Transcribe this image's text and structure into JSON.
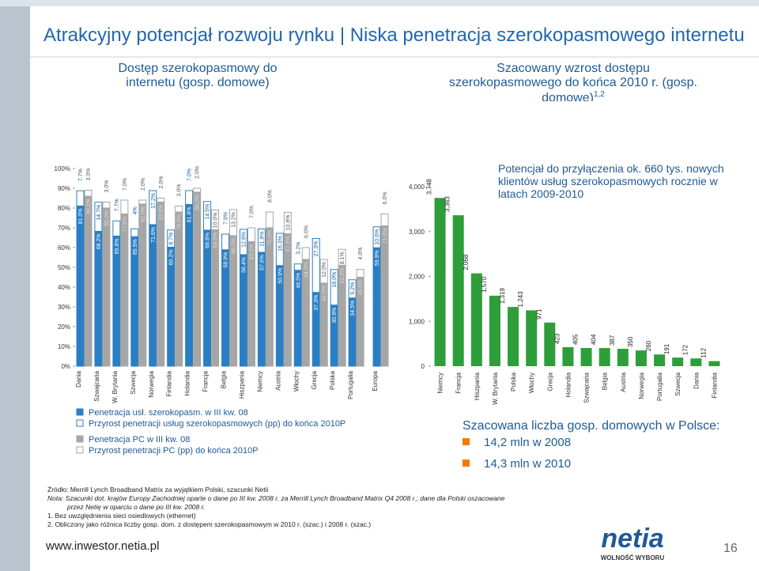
{
  "header": {
    "title": "Atrakcyjny potencjał rozwoju rynku | Niska penetracja szerokopasmowego internetu"
  },
  "chart_data": [
    {
      "type": "bar",
      "title": "Dostęp szerokopasmowy do internetu (gosp. domowe)",
      "categories": [
        "Dania",
        "Szwajcaria",
        "W. Brytania",
        "Szwecja",
        "Norwegia",
        "Finlandia",
        "Holandia",
        "Francja",
        "Belgia",
        "Hiszpania",
        "Niemcy",
        "Austria",
        "Włochy",
        "Grecja",
        "Polska",
        "Portugalia",
        "Europa"
      ],
      "series": [
        {
          "name": "Penetracja usł. szerokopasm. w III kw. 08",
          "color": "#2a7fc4",
          "edge": "#2a7fc4",
          "values": [
            81.0,
            68.2,
            65.8,
            65.5,
            71.6,
            60.2,
            81.8,
            68.8,
            58.9,
            56.4,
            57.6,
            50.9,
            48.5,
            37.3,
            30.9,
            34.5,
            59.9
          ],
          "value_labels": [
            "81.0%",
            "68.2%",
            "65.8%",
            "65.5%",
            "71.6%",
            "60.2%",
            "81.8%",
            "68.8%",
            "58.9%",
            "56.4%",
            "57.6%",
            "50.9%",
            "48.5%",
            "37.3%",
            "30.9%",
            "34.5%",
            "59.9%"
          ]
        },
        {
          "name": "Przyrost penetracji usług szerokopasmowych (pp) do końca 2010P",
          "color": "#ffffff",
          "edge": "#2a7fc4",
          "values": [
            7.7,
            14.7,
            7.7,
            4,
            17.2,
            8.7,
            7.0,
            14.5,
            7.9,
            12.8,
            11.8,
            16.3,
            3.2,
            27.3,
            18.0,
            9.2,
            10.6
          ],
          "value_labels": [
            "7.7%",
            "14.7%",
            "7.7%",
            "4%",
            "17.2%",
            "8.7%",
            "7.0%",
            "14.5%",
            "7.9%",
            "12.8%",
            "11.8%",
            "16.3%",
            "3.2%",
            "27.3%",
            "18.0%",
            "9.2%",
            "10.6%"
          ]
        },
        {
          "name": "Penetracja PC w III kw. 08",
          "color": "#a6a6a6",
          "edge": "#a6a6a6",
          "values": [
            86.0,
            80.0,
            77.0,
            82.0,
            83.0,
            78.0,
            88.0,
            69.0,
            66.0,
            63.0,
            70.0,
            67.0,
            54.0,
            42.0,
            51.0,
            45.0,
            71.0
          ],
          "value_labels": [
            "86.0%",
            "80.0%",
            "77.0%",
            "82.0%",
            "83.0%",
            "78.0%",
            "88.0%",
            "69.0%",
            "66.0%",
            "63.0%",
            "70.0%",
            "67.0%",
            "54.0%",
            "42.0%",
            "51.0%",
            "45.0%",
            "71.0%"
          ]
        },
        {
          "name": "Przyrost penetracji PC (pp) do końca 2010P",
          "color": "#ffffff",
          "edge": "#a6a6a6",
          "values": [
            3.0,
            3.0,
            7.0,
            2.0,
            2.0,
            3.0,
            2.0,
            10.0,
            13.2,
            7.0,
            8.0,
            10.8,
            6.0,
            12.0,
            8.1,
            4.0,
            6.0
          ],
          "value_labels": [
            "3.0%",
            "3.0%",
            "7.0%",
            "2.0%",
            "2.0%",
            "3.0%",
            "2.0%",
            "10.0%",
            "13.2%",
            "7.0%",
            "8.0%",
            "10.8%",
            "6.0%",
            "12.0%",
            "8.1%",
            "4.0%",
            "6.0%"
          ]
        }
      ],
      "ylim": [
        0,
        100
      ],
      "yticks": [
        {
          "value": 0,
          "label": "0%"
        },
        {
          "value": 10,
          "label": "10%"
        },
        {
          "value": 20,
          "label": "20%"
        },
        {
          "value": 30,
          "label": "30%"
        },
        {
          "value": 40,
          "label": "40%"
        },
        {
          "value": 50,
          "label": "50%"
        },
        {
          "value": 60,
          "label": "60%"
        },
        {
          "value": 70,
          "label": "70%"
        },
        {
          "value": 80,
          "label": "80%"
        },
        {
          "value": 90,
          "label": "90%"
        },
        {
          "value": 100,
          "label": "100%"
        }
      ]
    },
    {
      "type": "bar",
      "title": "Szacowany wzrost dostępu szerokopasmowego do końca 2010 r. (gosp. domowe)",
      "title_sup": "1,2",
      "annotation": "Potencjał do przyłączenia ok. 660 tys. nowych klientów usług szerokopasmowych rocznie w latach 2009-2010",
      "categories": [
        "Niemcy",
        "Francja",
        "Hiszpania",
        "W. Brytania",
        "Polska",
        "Włochy",
        "Grecja",
        "Holandia",
        "Szwajcaria",
        "Belgia",
        "Austria",
        "Norwegia",
        "Portugalia",
        "Szwecja",
        "Dania",
        "Finlandia"
      ],
      "values": [
        3748,
        3363,
        2068,
        1570,
        1319,
        1243,
        971,
        423,
        405,
        404,
        387,
        350,
        260,
        191,
        172,
        112
      ],
      "value_labels": [
        "3,748",
        "3,363",
        "2,068",
        "1,570",
        "1,319",
        "1,243",
        "971",
        "423",
        "405",
        "404",
        "387",
        "350",
        "260",
        "191",
        "172",
        "112"
      ],
      "color": "#2e9e3a",
      "ylim": [
        0,
        4000
      ],
      "yticks": [
        0,
        {
          "value": 1000,
          "label": "1,000"
        },
        {
          "value": 2000,
          "label": "2,000"
        },
        {
          "value": 3000,
          "label": "3,000"
        },
        {
          "value": 4000,
          "label": "4,000"
        }
      ]
    }
  ],
  "households": {
    "title": "Szacowana liczba gosp. domowych w Polsce:",
    "items": [
      "14,2 mln w 2008",
      "14,3 mln w 2010"
    ]
  },
  "notes": [
    "Źródło: Merrill Lynch Broadband Matrix za wyjątkiem Polski, szacunki Netii",
    "Nota: Szacunki dot. krajów Europy Zachodniej oparte o dane po III kw. 2008 r. za Merrill Lynch Broadband Matrix Q4 2008 r.; dane dla Polski oszacowane",
    "przez Netię w oparciu o dane po III kw. 2008 r.",
    "1. Bez uwzględnienia sieci osiedlowych (ethernet)",
    "2. Obliczony jako różnica liczby gosp. dom. z dostępem szerokopasmowym w 2010 r. (szac.) i 2008 r. (szac.)"
  ],
  "footer": {
    "url": "www.inwestor.netia.pl",
    "logo": "netia",
    "tagline": "WOLNOŚĆ WYBORU",
    "page": "16"
  }
}
